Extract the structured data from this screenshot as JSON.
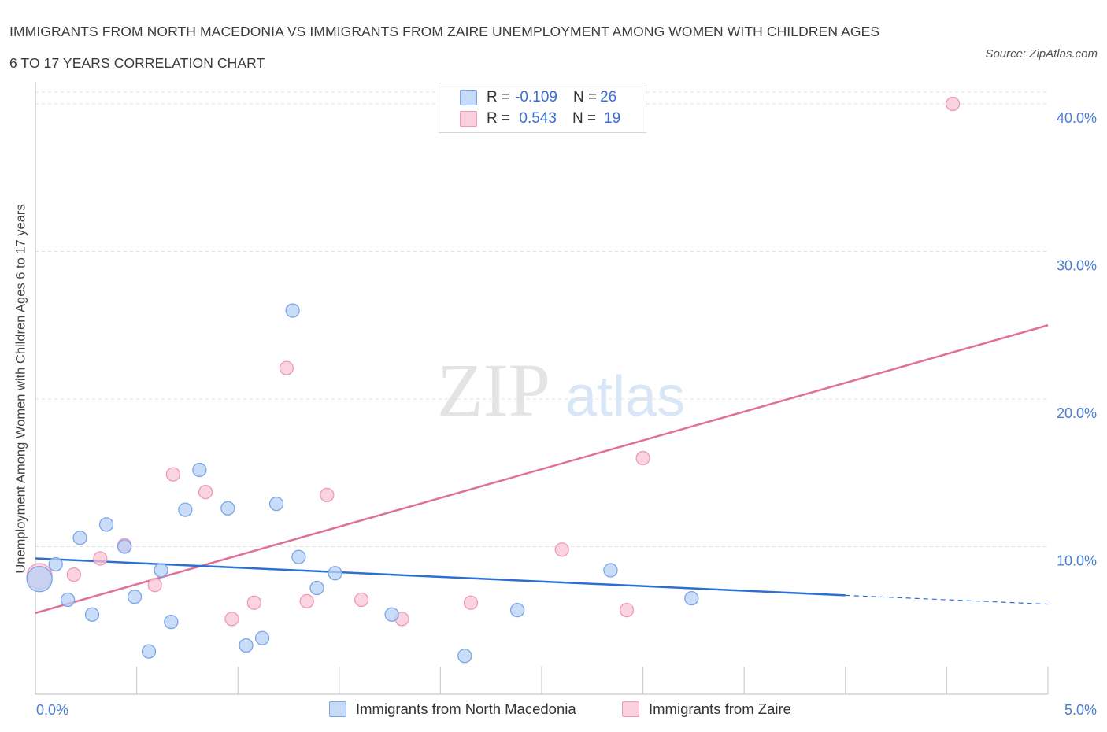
{
  "header": {
    "title_line1": "IMMIGRANTS FROM NORTH MACEDONIA VS IMMIGRANTS FROM ZAIRE UNEMPLOYMENT AMONG WOMEN WITH CHILDREN AGES",
    "title_line2": "6 TO 17 YEARS CORRELATION CHART",
    "source": "Source: ZipAtlas.com"
  },
  "legend": {
    "series1": {
      "r_label": "R = ",
      "r_value": "-0.109",
      "n_label": "N = ",
      "n_value": "26"
    },
    "series2": {
      "r_label": "R = ",
      "r_value": " 0.543",
      "n_label": "N = ",
      "n_value": "19"
    }
  },
  "colors": {
    "blue_fill": "#b8d2f5",
    "blue_stroke": "#7aa6e6",
    "blue_line": "#2c6fd0",
    "pink_fill": "#f8c6d6",
    "pink_stroke": "#ee9ab6",
    "pink_line": "#e0709a",
    "grid": "#e2e2e2",
    "axis_label": "#4a7fd1"
  },
  "chart_data": {
    "type": "scatter",
    "title": "IMMIGRANTS FROM NORTH MACEDONIA VS IMMIGRANTS FROM ZAIRE UNEMPLOYMENT AMONG WOMEN WITH CHILDREN AGES 6 TO 17 YEARS CORRELATION CHART",
    "xlabel": "",
    "ylabel": "Unemployment Among Women with Children Ages 6 to 17 years",
    "xlim": [
      0,
      5
    ],
    "ylim": [
      0,
      40.8
    ],
    "x_ticks": [
      {
        "value": 0,
        "label": "0.0%"
      },
      {
        "value": 5,
        "label": "5.0%"
      }
    ],
    "y_ticks": [
      {
        "value": 10,
        "label": "10.0%"
      },
      {
        "value": 20,
        "label": "20.0%"
      },
      {
        "value": 30,
        "label": "30.0%"
      },
      {
        "value": 40,
        "label": "40.0%"
      }
    ],
    "x_minor_ticks": [
      0.5,
      1.0,
      1.5,
      2.0,
      2.5,
      3.0,
      3.5,
      4.0,
      4.5,
      5.0
    ],
    "watermark": {
      "zip": "ZIP",
      "atlas": "atlas"
    },
    "series": [
      {
        "name": "Immigrants from North Macedonia",
        "color": "blue",
        "points": [
          {
            "x": 0.02,
            "y": 7.8,
            "size": "large"
          },
          {
            "x": 0.1,
            "y": 8.8
          },
          {
            "x": 0.16,
            "y": 6.4
          },
          {
            "x": 0.22,
            "y": 10.6
          },
          {
            "x": 0.28,
            "y": 5.4
          },
          {
            "x": 0.35,
            "y": 11.5
          },
          {
            "x": 0.44,
            "y": 10.0
          },
          {
            "x": 0.49,
            "y": 6.6
          },
          {
            "x": 0.56,
            "y": 2.9
          },
          {
            "x": 0.62,
            "y": 8.4
          },
          {
            "x": 0.67,
            "y": 4.9
          },
          {
            "x": 0.74,
            "y": 12.5
          },
          {
            "x": 0.81,
            "y": 15.2
          },
          {
            "x": 0.95,
            "y": 12.6
          },
          {
            "x": 1.04,
            "y": 3.3
          },
          {
            "x": 1.12,
            "y": 3.8
          },
          {
            "x": 1.19,
            "y": 12.9
          },
          {
            "x": 1.27,
            "y": 26.0
          },
          {
            "x": 1.3,
            "y": 9.3
          },
          {
            "x": 1.39,
            "y": 7.2
          },
          {
            "x": 1.48,
            "y": 8.2
          },
          {
            "x": 1.76,
            "y": 5.4
          },
          {
            "x": 2.12,
            "y": 2.6
          },
          {
            "x": 2.38,
            "y": 5.7
          },
          {
            "x": 2.84,
            "y": 8.4
          },
          {
            "x": 3.24,
            "y": 6.5
          }
        ],
        "trend": {
          "x0": 0,
          "y0": 9.2,
          "x1": 4.0,
          "y1": 6.7,
          "dash_to_x": 5.0,
          "dash_to_y": 6.1
        }
      },
      {
        "name": "Immigrants from Zaire",
        "color": "pink",
        "points": [
          {
            "x": 0.02,
            "y": 8.0,
            "size": "large"
          },
          {
            "x": 0.19,
            "y": 8.1
          },
          {
            "x": 0.32,
            "y": 9.2
          },
          {
            "x": 0.44,
            "y": 10.1
          },
          {
            "x": 0.59,
            "y": 7.4
          },
          {
            "x": 0.68,
            "y": 14.9
          },
          {
            "x": 0.84,
            "y": 13.7
          },
          {
            "x": 0.97,
            "y": 5.1
          },
          {
            "x": 1.08,
            "y": 6.2
          },
          {
            "x": 1.24,
            "y": 22.1
          },
          {
            "x": 1.34,
            "y": 6.3
          },
          {
            "x": 1.44,
            "y": 13.5
          },
          {
            "x": 1.61,
            "y": 6.4
          },
          {
            "x": 1.81,
            "y": 5.1
          },
          {
            "x": 2.15,
            "y": 6.2
          },
          {
            "x": 2.6,
            "y": 9.8
          },
          {
            "x": 2.92,
            "y": 5.7
          },
          {
            "x": 3.0,
            "y": 16.0
          },
          {
            "x": 4.53,
            "y": 40.0
          }
        ],
        "trend": {
          "x0": 0,
          "y0": 5.5,
          "x1": 5.0,
          "y1": 25.0
        }
      }
    ]
  }
}
